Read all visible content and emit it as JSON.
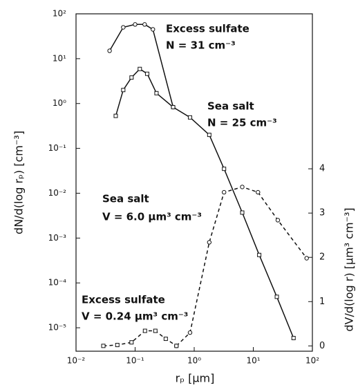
{
  "chart_data": {
    "type": "line",
    "x_label": "rₚ [μm]",
    "y_label": "dN/d(log rₚ) [cm⁻³]",
    "y2_label": "dV/d(log r) [μm³ cm⁻³]",
    "annotations": [
      "Excess sulfate",
      "N = 31 cm⁻³",
      "Sea salt",
      "N = 25 cm⁻³",
      "Sea salt",
      "V = 6.0 μm³ cm⁻³",
      "Excess sulfate",
      "V = 0.24 μm³ cm⁻³"
    ],
    "xscale": "log",
    "yscale": "log",
    "xlim": [
      0.01,
      100
    ],
    "ylim": [
      3e-06,
      100
    ],
    "y2lim": [
      -0.12,
      7.5
    ],
    "xticks": [
      {
        "value": 0.01,
        "label": "10⁻²"
      },
      {
        "value": 0.1,
        "label": "10⁻¹"
      },
      {
        "value": 1,
        "label": "10⁰"
      },
      {
        "value": 10,
        "label": "10¹"
      },
      {
        "value": 100,
        "label": "10²"
      }
    ],
    "yticks": [
      {
        "value": 100,
        "label": "10²"
      },
      {
        "value": 10,
        "label": "10¹"
      },
      {
        "value": 1,
        "label": "10⁰"
      },
      {
        "value": 0.1,
        "label": "10⁻¹"
      },
      {
        "value": 0.01,
        "label": "10⁻²"
      },
      {
        "value": 0.001,
        "label": "10⁻³"
      },
      {
        "value": 0.0001,
        "label": "10⁻⁴"
      },
      {
        "value": 1e-05,
        "label": "10⁻⁵"
      }
    ],
    "y2ticks": [
      0,
      1,
      2,
      3,
      4
    ],
    "series": [
      {
        "color": "#111111",
        "style": "solid",
        "marker": "circle",
        "x": [
          0.037,
          0.063,
          0.1,
          0.145,
          0.2,
          0.44
        ],
        "values": [
          15,
          50,
          58,
          58,
          45,
          0.83
        ]
      },
      {
        "color": "#111111",
        "style": "solid",
        "marker": "square",
        "x": [
          0.047,
          0.063,
          0.087,
          0.12,
          0.16,
          0.23,
          0.44,
          0.85,
          1.8,
          3.2,
          6.5,
          12.6,
          25,
          48
        ],
        "values": [
          0.53,
          2.0,
          3.8,
          5.9,
          4.6,
          1.7,
          0.83,
          0.49,
          0.2,
          0.035,
          0.0037,
          0.00042,
          4.9e-05,
          5.9e-06
        ]
      },
      {
        "color": "#111111",
        "style": "dashed",
        "marker": "circle",
        "axis": "y2",
        "x": [
          0.5,
          0.85,
          1.8,
          3.2,
          6.5,
          12,
          26,
          80
        ],
        "values": [
          0.0,
          0.3,
          2.34,
          3.47,
          3.59,
          3.47,
          2.84,
          1.98
        ]
      },
      {
        "color": "#111111",
        "style": "dashed",
        "marker": "square",
        "axis": "y2",
        "x": [
          0.029,
          0.05,
          0.087,
          0.147,
          0.22,
          0.33,
          0.5
        ],
        "values": [
          0.0,
          0.02,
          0.08,
          0.34,
          0.34,
          0.16,
          0.0
        ]
      }
    ]
  }
}
